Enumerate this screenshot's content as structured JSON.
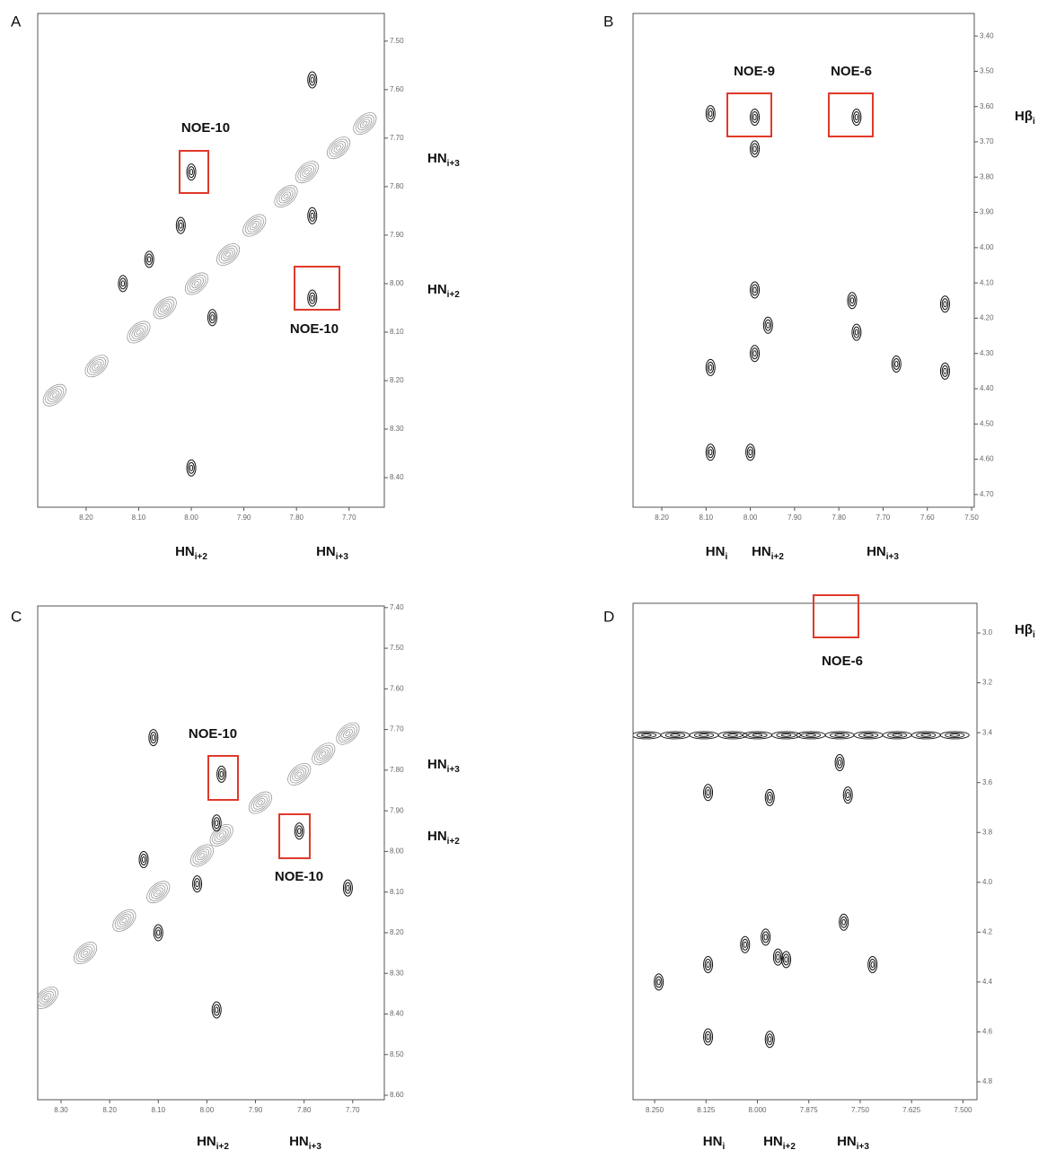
{
  "chart_data": [
    {
      "type": "contour",
      "panel_label": "A",
      "xlim": [
        8.292,
        7.633
      ],
      "ylim": [
        7.443,
        8.461
      ],
      "xticks": [
        {
          "value": 8.2,
          "label": "8.20"
        },
        {
          "value": 8.1,
          "label": "8.10"
        },
        {
          "value": 8.0,
          "label": "8.00"
        },
        {
          "value": 7.9,
          "label": "7.90"
        },
        {
          "value": 7.8,
          "label": "7.80"
        },
        {
          "value": 7.7,
          "label": "7.70"
        }
      ],
      "yticks": [
        {
          "value": 7.5,
          "label": "7.50"
        },
        {
          "value": 7.6,
          "label": "7.60"
        },
        {
          "value": 7.7,
          "label": "7.70"
        },
        {
          "value": 7.8,
          "label": "7.80"
        },
        {
          "value": 7.9,
          "label": "7.90"
        },
        {
          "value": 8.0,
          "label": "8.00"
        },
        {
          "value": 8.1,
          "label": "8.10"
        },
        {
          "value": 8.2,
          "label": "8.20"
        },
        {
          "value": 8.3,
          "label": "8.30"
        },
        {
          "value": 8.4,
          "label": "8.40"
        }
      ],
      "diagonal": {
        "color": "#8c8c8c",
        "x": [
          8.26,
          8.18,
          8.1,
          8.05,
          7.99,
          7.93,
          7.88,
          7.82,
          7.78,
          7.72,
          7.67
        ],
        "y": [
          8.23,
          8.17,
          8.1,
          8.05,
          8.0,
          7.94,
          7.88,
          7.82,
          7.77,
          7.72,
          7.67
        ]
      },
      "cross": {
        "color": "#111111",
        "x": [
          8.0,
          7.77,
          8.08,
          8.13,
          7.77,
          7.77,
          8.02,
          8.0,
          7.96
        ],
        "y": [
          7.77,
          8.03,
          7.95,
          8.0,
          7.58,
          7.86,
          7.88,
          8.38,
          8.07
        ]
      },
      "annotations": [
        "NOE-10",
        "NOE-10"
      ],
      "x_labels": [
        {
          "text": "HN",
          "sub": "i+2"
        },
        {
          "text": "HN",
          "sub": "i+3"
        }
      ],
      "y_labels": [
        {
          "text": "HN",
          "sub": "i+3"
        },
        {
          "text": "HN",
          "sub": "i+2"
        }
      ]
    },
    {
      "type": "contour",
      "panel_label": "B",
      "xlim": [
        8.265,
        7.494
      ],
      "ylim": [
        3.336,
        4.736
      ],
      "xticks": [
        {
          "value": 8.2,
          "label": "8.20"
        },
        {
          "value": 8.1,
          "label": "8.10"
        },
        {
          "value": 8.0,
          "label": "8.00"
        },
        {
          "value": 7.9,
          "label": "7.90"
        },
        {
          "value": 7.8,
          "label": "7.80"
        },
        {
          "value": 7.7,
          "label": "7.70"
        },
        {
          "value": 7.6,
          "label": "7.60"
        },
        {
          "value": 7.5,
          "label": "7.50"
        }
      ],
      "yticks": [
        {
          "value": 3.4,
          "label": "3.40"
        },
        {
          "value": 3.5,
          "label": "3.50"
        },
        {
          "value": 3.6,
          "label": "3.60"
        },
        {
          "value": 3.7,
          "label": "3.70"
        },
        {
          "value": 3.8,
          "label": "3.80"
        },
        {
          "value": 3.9,
          "label": "3.90"
        },
        {
          "value": 4.0,
          "label": "4.00"
        },
        {
          "value": 4.1,
          "label": "4.10"
        },
        {
          "value": 4.2,
          "label": "4.20"
        },
        {
          "value": 4.3,
          "label": "4.30"
        },
        {
          "value": 4.4,
          "label": "4.40"
        },
        {
          "value": 4.5,
          "label": "4.50"
        },
        {
          "value": 4.6,
          "label": "4.60"
        },
        {
          "value": 4.7,
          "label": "4.70"
        }
      ],
      "cross": {
        "color": "#111111",
        "x": [
          8.09,
          7.99,
          7.76,
          7.99,
          7.99,
          7.96,
          7.99,
          8.09,
          8.09,
          8.0,
          7.77,
          7.76,
          7.67,
          7.56,
          7.56
        ],
        "y": [
          3.62,
          3.63,
          3.63,
          3.72,
          4.12,
          4.22,
          4.3,
          4.34,
          4.58,
          4.58,
          4.15,
          4.24,
          4.33,
          4.16,
          4.35
        ]
      },
      "annotations": [
        "NOE-9",
        "NOE-6"
      ],
      "x_labels": [
        {
          "text": "HN",
          "sub": "i"
        },
        {
          "text": "HN",
          "sub": "i+2"
        },
        {
          "text": "HN",
          "sub": "i+3"
        }
      ],
      "y_labels": [
        {
          "text": "Hβ",
          "sub": "i"
        }
      ]
    },
    {
      "type": "contour",
      "panel_label": "C",
      "xlim": [
        8.348,
        7.635
      ],
      "ylim": [
        7.396,
        8.611
      ],
      "xticks": [
        {
          "value": 8.3,
          "label": "8.30"
        },
        {
          "value": 8.2,
          "label": "8.20"
        },
        {
          "value": 8.1,
          "label": "8.10"
        },
        {
          "value": 8.0,
          "label": "8.00"
        },
        {
          "value": 7.9,
          "label": "7.90"
        },
        {
          "value": 7.8,
          "label": "7.80"
        },
        {
          "value": 7.7,
          "label": "7.70"
        }
      ],
      "yticks": [
        {
          "value": 7.4,
          "label": "7.40"
        },
        {
          "value": 7.5,
          "label": "7.50"
        },
        {
          "value": 7.6,
          "label": "7.60"
        },
        {
          "value": 7.7,
          "label": "7.70"
        },
        {
          "value": 7.8,
          "label": "7.80"
        },
        {
          "value": 7.9,
          "label": "7.90"
        },
        {
          "value": 8.0,
          "label": "8.00"
        },
        {
          "value": 8.1,
          "label": "8.10"
        },
        {
          "value": 8.2,
          "label": "8.20"
        },
        {
          "value": 8.3,
          "label": "8.30"
        },
        {
          "value": 8.4,
          "label": "8.40"
        },
        {
          "value": 8.5,
          "label": "8.50"
        },
        {
          "value": 8.6,
          "label": "8.60"
        }
      ],
      "diagonal": {
        "color": "#8c8c8c",
        "x": [
          8.33,
          8.25,
          8.17,
          8.1,
          8.01,
          7.97,
          7.89,
          7.81,
          7.76,
          7.71
        ],
        "y": [
          8.36,
          8.25,
          8.17,
          8.1,
          8.01,
          7.96,
          7.88,
          7.81,
          7.76,
          7.71
        ]
      },
      "cross": {
        "color": "#111111",
        "x": [
          7.97,
          7.81,
          8.13,
          7.98,
          8.1,
          8.02,
          8.11,
          7.98,
          7.71
        ],
        "y": [
          7.81,
          7.95,
          8.02,
          7.93,
          8.2,
          8.08,
          7.72,
          8.39,
          8.09
        ]
      },
      "annotations": [
        "NOE-10",
        "NOE-10"
      ],
      "x_labels": [
        {
          "text": "HN",
          "sub": "i+2"
        },
        {
          "text": "HN",
          "sub": "i+3"
        }
      ],
      "y_labels": [
        {
          "text": "HN",
          "sub": "i+3"
        },
        {
          "text": "HN",
          "sub": "i+2"
        }
      ]
    },
    {
      "type": "contour",
      "panel_label": "D",
      "xlim": [
        8.3025,
        7.466
      ],
      "ylim": [
        2.881,
        4.872
      ],
      "xticks": [
        {
          "value": 8.25,
          "label": "8.250"
        },
        {
          "value": 8.125,
          "label": "8.125"
        },
        {
          "value": 8.0,
          "label": "8.000"
        },
        {
          "value": 7.875,
          "label": "7.875"
        },
        {
          "value": 7.75,
          "label": "7.750"
        },
        {
          "value": 7.625,
          "label": "7.625"
        },
        {
          "value": 7.5,
          "label": "7.500"
        }
      ],
      "yticks": [
        {
          "value": 3.0,
          "label": "3.0"
        },
        {
          "value": 3.2,
          "label": "3.2"
        },
        {
          "value": 3.4,
          "label": "3.4"
        },
        {
          "value": 3.6,
          "label": "3.6"
        },
        {
          "value": 3.8,
          "label": "3.8"
        },
        {
          "value": 4.0,
          "label": "4.0"
        },
        {
          "value": 4.2,
          "label": "4.2"
        },
        {
          "value": 4.4,
          "label": "4.4"
        },
        {
          "value": 4.6,
          "label": "4.6"
        },
        {
          "value": 4.8,
          "label": "4.8"
        }
      ],
      "band": {
        "color": "#111111",
        "x": [
          8.27,
          8.2,
          8.13,
          8.06,
          8.0,
          7.93,
          7.87,
          7.8,
          7.73,
          7.66,
          7.59,
          7.52
        ],
        "y": [
          3.41,
          3.41,
          3.41,
          3.41,
          3.41,
          3.41,
          3.41,
          3.41,
          3.41,
          3.41,
          3.41,
          3.41
        ]
      },
      "cross": {
        "color": "#111111",
        "x": [
          8.12,
          7.97,
          7.78,
          7.8,
          8.12,
          8.03,
          7.98,
          7.95,
          7.79,
          7.72,
          8.12,
          7.97,
          8.24,
          7.93
        ],
        "y": [
          3.64,
          3.66,
          3.65,
          3.52,
          4.33,
          4.25,
          4.22,
          4.3,
          4.16,
          4.33,
          4.62,
          4.63,
          4.4,
          4.31
        ]
      },
      "annotations": [
        "NOE-6"
      ],
      "x_labels": [
        {
          "text": "HN",
          "sub": "i"
        },
        {
          "text": "HN",
          "sub": "i+2"
        },
        {
          "text": "HN",
          "sub": "i+3"
        }
      ],
      "y_labels": [
        {
          "text": "Hβ",
          "sub": "i"
        }
      ]
    }
  ]
}
